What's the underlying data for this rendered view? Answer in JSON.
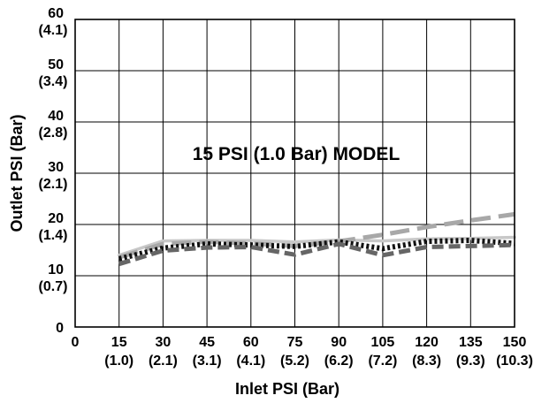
{
  "chart_data": {
    "type": "line",
    "xlabel": "Inlet PSI (Bar)",
    "ylabel": "Outlet PSI (Bar)",
    "annotation": "15 PSI (1.0 Bar) MODEL",
    "xlim": [
      0,
      150
    ],
    "ylim": [
      0,
      60
    ],
    "grid": true,
    "x_ticks": [
      {
        "value": 0,
        "psi": "0",
        "bar": ""
      },
      {
        "value": 15,
        "psi": "15",
        "bar": "(1.0)"
      },
      {
        "value": 30,
        "psi": "30",
        "bar": "(2.1)"
      },
      {
        "value": 45,
        "psi": "45",
        "bar": "(3.1)"
      },
      {
        "value": 60,
        "psi": "60",
        "bar": "(4.1)"
      },
      {
        "value": 75,
        "psi": "75",
        "bar": "(5.2)"
      },
      {
        "value": 90,
        "psi": "90",
        "bar": "(6.2)"
      },
      {
        "value": 105,
        "psi": "105",
        "bar": "(7.2)"
      },
      {
        "value": 120,
        "psi": "120",
        "bar": "(8.3)"
      },
      {
        "value": 135,
        "psi": "135",
        "bar": "(9.3)"
      },
      {
        "value": 150,
        "psi": "150",
        "bar": "(10.3)"
      }
    ],
    "y_ticks": [
      {
        "value": 0,
        "psi": "0",
        "bar": ""
      },
      {
        "value": 10,
        "psi": "10",
        "bar": "(0.7)"
      },
      {
        "value": 20,
        "psi": "20",
        "bar": "(1.4)"
      },
      {
        "value": 30,
        "psi": "30",
        "bar": "(2.1)"
      },
      {
        "value": 40,
        "psi": "40",
        "bar": "(2.8)"
      },
      {
        "value": 50,
        "psi": "50",
        "bar": "(3.4)"
      },
      {
        "value": 60,
        "psi": "60",
        "bar": "(4.1)"
      }
    ],
    "series": [
      {
        "style": "solid",
        "color": "#c8c8c8",
        "x": [
          15,
          30,
          45,
          60,
          75,
          90,
          105,
          120,
          135,
          150
        ],
        "y": [
          14.0,
          16.8,
          16.9,
          16.9,
          16.6,
          17.0,
          16.8,
          17.2,
          17.3,
          17.5
        ]
      },
      {
        "style": "long-dash",
        "color": "#a8a8a8",
        "x": [
          15,
          30,
          45,
          60,
          75,
          90,
          105,
          120,
          135,
          150
        ],
        "y": [
          13.6,
          16.2,
          16.6,
          16.3,
          15.8,
          16.7,
          18.0,
          19.5,
          20.8,
          22.0
        ]
      },
      {
        "style": "dotted",
        "color": "#111111",
        "x": [
          15,
          30,
          45,
          60,
          75,
          90,
          105,
          120,
          135,
          150
        ],
        "y": [
          13.3,
          15.4,
          16.2,
          16.0,
          15.7,
          16.6,
          15.3,
          16.7,
          16.9,
          16.3
        ]
      },
      {
        "style": "dashed",
        "color": "#666666",
        "x": [
          15,
          30,
          45,
          60,
          75,
          90,
          105,
          120,
          135,
          150
        ],
        "y": [
          12.3,
          14.9,
          15.5,
          15.6,
          14.1,
          16.2,
          14.0,
          15.6,
          15.8,
          16.0
        ]
      }
    ]
  }
}
